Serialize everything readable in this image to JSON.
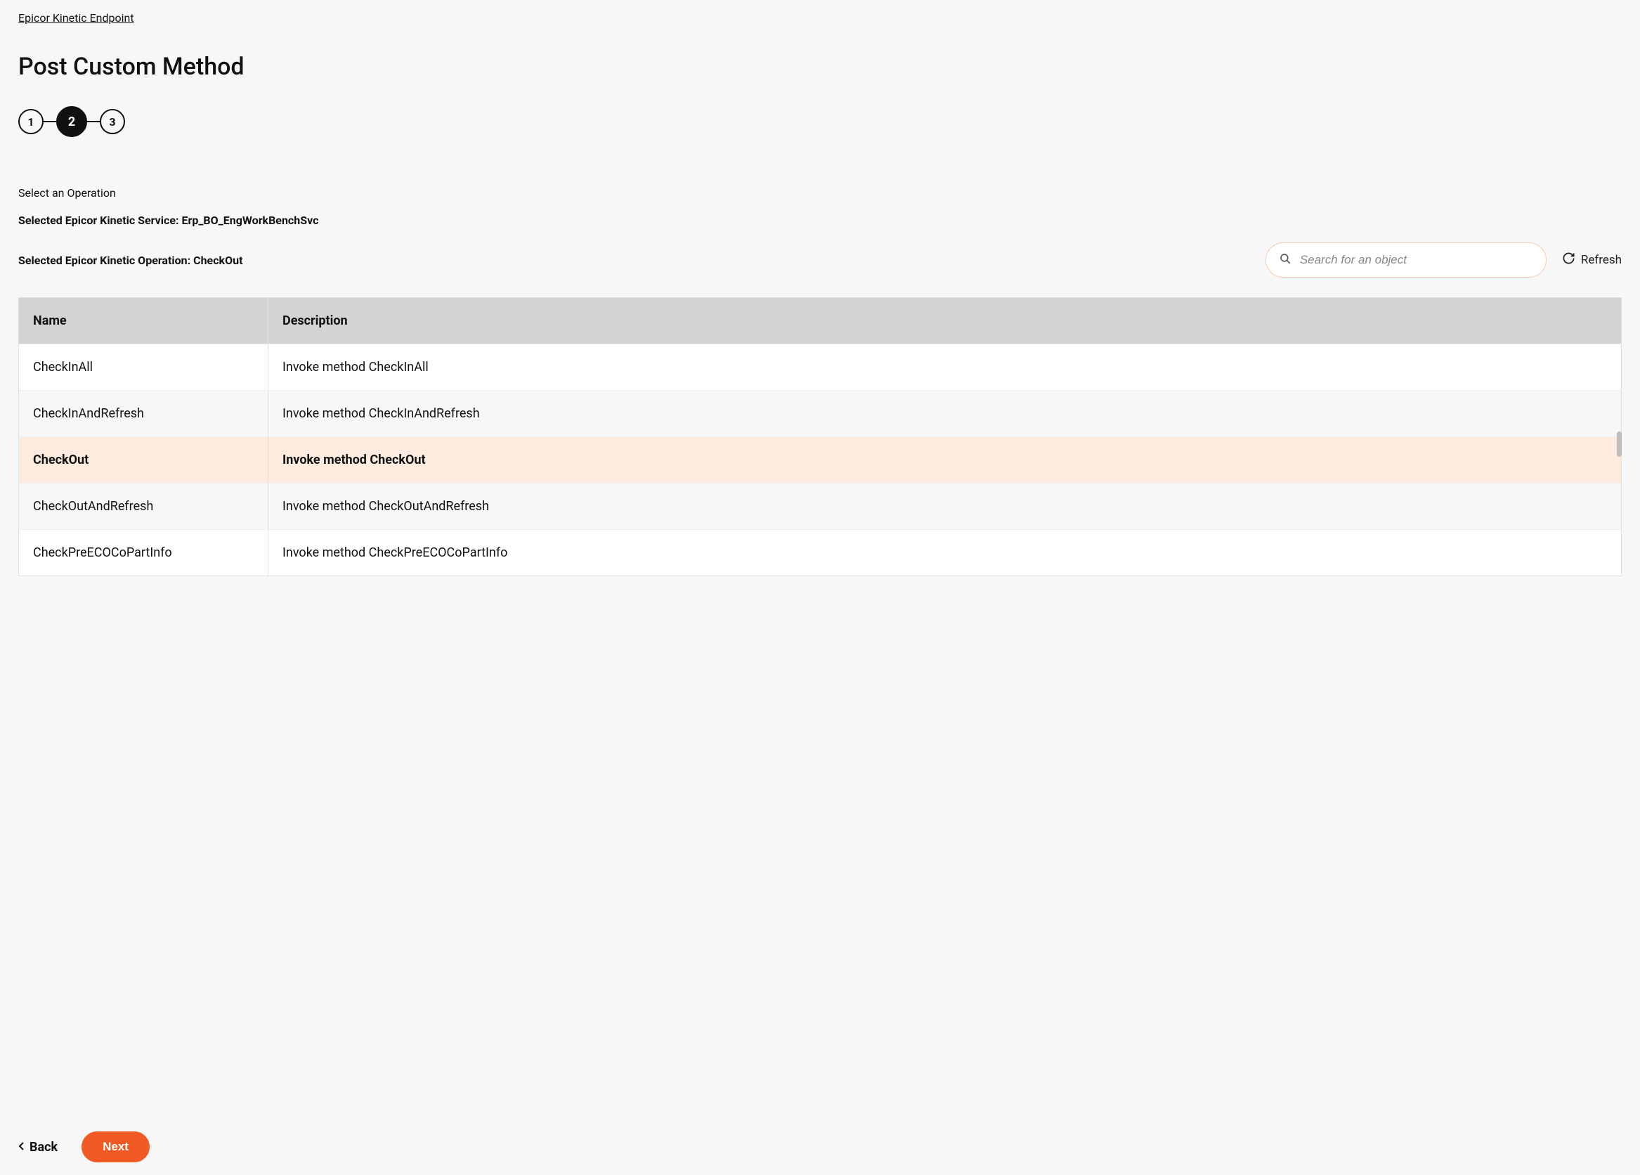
{
  "breadcrumb": {
    "label": "Epicor Kinetic Endpoint"
  },
  "page_title": "Post Custom Method",
  "stepper": {
    "steps": [
      "1",
      "2",
      "3"
    ],
    "active_index": 1
  },
  "instruction": "Select an Operation",
  "selected_service": {
    "prefix": "Selected Epicor Kinetic Service: ",
    "value": "Erp_BO_EngWorkBenchSvc"
  },
  "selected_operation": {
    "prefix": "Selected Epicor Kinetic Operation: ",
    "value": "CheckOut"
  },
  "search": {
    "placeholder": "Search for an object"
  },
  "refresh_label": "Refresh",
  "table": {
    "columns": [
      "Name",
      "Description"
    ],
    "selected_name": "CheckOut",
    "rows": [
      {
        "name": "CheckInAll",
        "description": "Invoke method CheckInAll"
      },
      {
        "name": "CheckInAndRefresh",
        "description": "Invoke method CheckInAndRefresh"
      },
      {
        "name": "CheckOut",
        "description": "Invoke method CheckOut"
      },
      {
        "name": "CheckOutAndRefresh",
        "description": "Invoke method CheckOutAndRefresh"
      },
      {
        "name": "CheckPreECOCoPartInfo",
        "description": "Invoke method CheckPreECOCoPartInfo"
      }
    ]
  },
  "footer": {
    "back_label": "Back",
    "next_label": "Next"
  },
  "colors": {
    "accent": "#f15a24",
    "selected_row_bg": "#fdebdf",
    "header_bg": "#d3d3d3",
    "page_bg": "#f7f7f7",
    "search_border": "#f7c9b0"
  }
}
